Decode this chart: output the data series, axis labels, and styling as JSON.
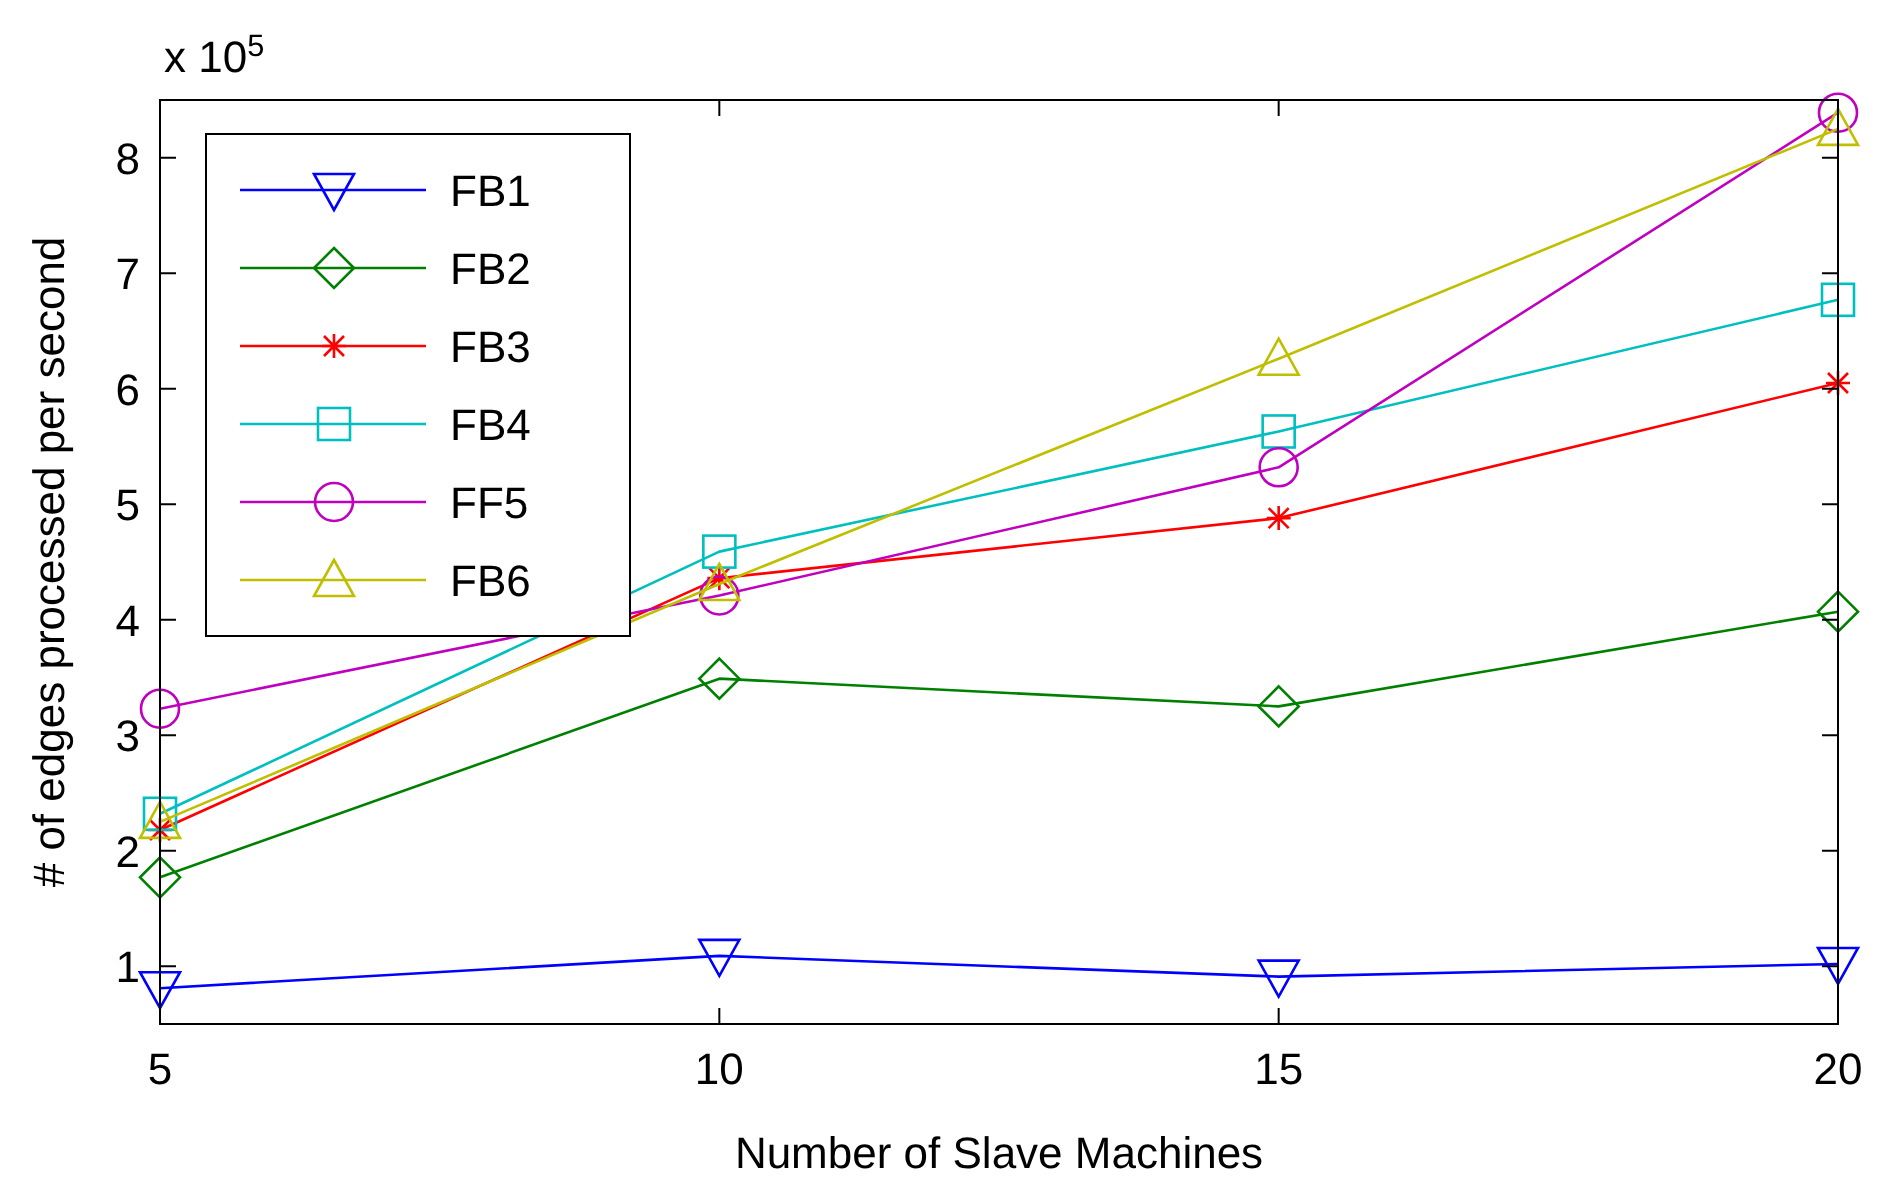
{
  "chart_data": {
    "type": "line",
    "xlabel": "Number of Slave Machines",
    "ylabel": "# of edges processed per second",
    "annotations": [
      "x 10$^{5}$"
    ],
    "x": [
      5,
      10,
      15,
      20
    ],
    "xlim": [
      5,
      20
    ],
    "xticks": [
      5,
      10,
      15,
      20
    ],
    "ylim": [
      0.5,
      8.5
    ],
    "yticks": [
      1,
      2,
      3,
      4,
      5,
      6,
      7,
      8
    ],
    "grid": false,
    "legend": "top left",
    "line_style": "solid",
    "series": [
      {
        "name": "FB1",
        "color": "#0000ff",
        "marker": "triangle-down",
        "values": [
          0.81,
          1.09,
          0.91,
          1.02
        ]
      },
      {
        "name": "FB2",
        "color": "#008000",
        "marker": "diamond",
        "values": [
          1.77,
          3.49,
          3.25,
          4.07
        ]
      },
      {
        "name": "FB3",
        "color": "#ff0000",
        "marker": "cross",
        "values": [
          2.18,
          4.36,
          4.88,
          6.05
        ]
      },
      {
        "name": "FB4",
        "color": "#00bfbf",
        "marker": "square",
        "values": [
          2.32,
          4.59,
          5.63,
          6.77
        ]
      },
      {
        "name": "FF5",
        "color": "#bf00bf",
        "marker": "circle",
        "values": [
          3.23,
          4.21,
          5.32,
          8.39
        ]
      },
      {
        "name": "FB6",
        "color": "#bfbf00",
        "marker": "triangle",
        "values": [
          2.25,
          4.31,
          6.26,
          8.25
        ]
      }
    ]
  }
}
